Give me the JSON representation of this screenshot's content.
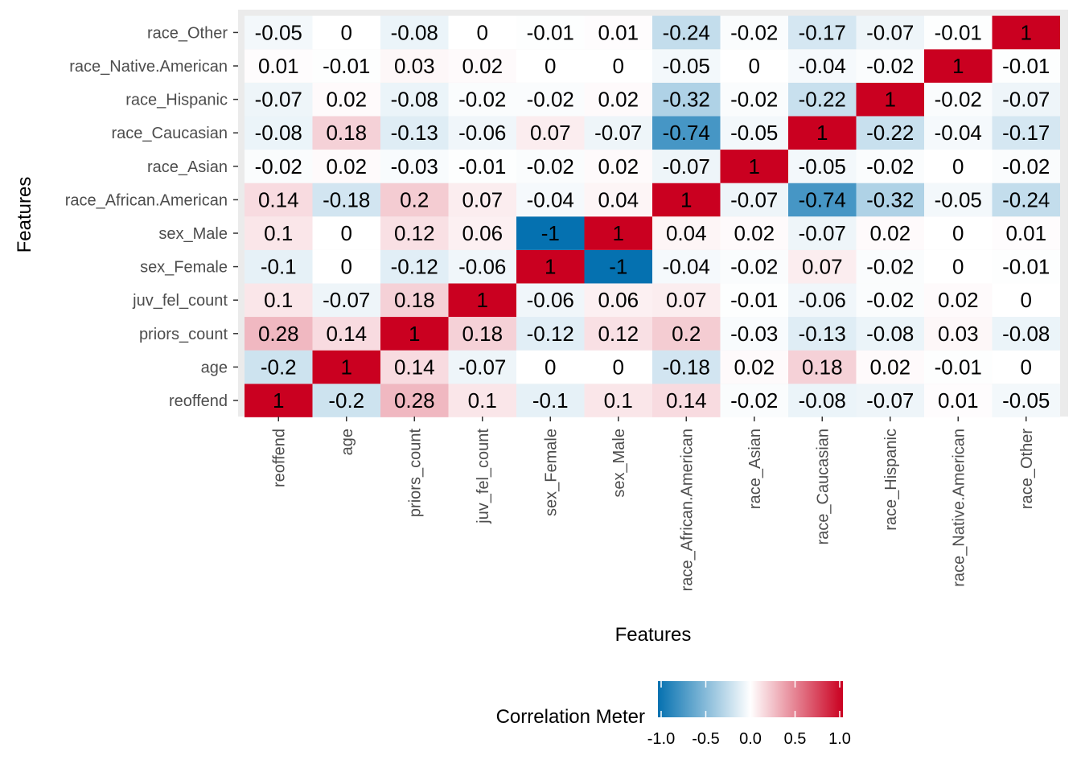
{
  "chart_data": {
    "type": "heatmap",
    "title": "",
    "xlabel": "Features",
    "ylabel": "Features",
    "features": [
      "reoffend",
      "age",
      "priors_count",
      "juv_fel_count",
      "sex_Female",
      "sex_Male",
      "race_African.American",
      "race_Asian",
      "race_Caucasian",
      "race_Hispanic",
      "race_Native.American",
      "race_Other"
    ],
    "x_categories": [
      "reoffend",
      "age",
      "priors_count",
      "juv_fel_count",
      "sex_Female",
      "sex_Male",
      "race_African.American",
      "race_Asian",
      "race_Caucasian",
      "race_Hispanic",
      "race_Native.American",
      "race_Other"
    ],
    "y_categories_bottom_to_top": [
      "reoffend",
      "age",
      "priors_count",
      "juv_fel_count",
      "sex_Female",
      "sex_Male",
      "race_African.American",
      "race_Asian",
      "race_Caucasian",
      "race_Hispanic",
      "race_Native.American",
      "race_Other"
    ],
    "values": [
      [
        1,
        -0.2,
        0.28,
        0.1,
        -0.1,
        0.1,
        0.14,
        -0.02,
        -0.08,
        -0.07,
        0.01,
        -0.05
      ],
      [
        -0.2,
        1,
        0.14,
        -0.07,
        0,
        0,
        -0.18,
        0.02,
        0.18,
        0.02,
        -0.01,
        0
      ],
      [
        0.28,
        0.14,
        1,
        0.18,
        -0.12,
        0.12,
        0.2,
        -0.03,
        -0.13,
        -0.08,
        0.03,
        -0.08
      ],
      [
        0.1,
        -0.07,
        0.18,
        1,
        -0.06,
        0.06,
        0.07,
        -0.01,
        -0.06,
        -0.02,
        0.02,
        0
      ],
      [
        -0.1,
        0,
        -0.12,
        -0.06,
        1,
        -1,
        -0.04,
        -0.02,
        0.07,
        -0.02,
        0,
        -0.01
      ],
      [
        0.1,
        0,
        0.12,
        0.06,
        -1,
        1,
        0.04,
        0.02,
        -0.07,
        0.02,
        0,
        0.01
      ],
      [
        0.14,
        -0.18,
        0.2,
        0.07,
        -0.04,
        0.04,
        1,
        -0.07,
        -0.74,
        -0.32,
        -0.05,
        -0.24
      ],
      [
        -0.02,
        0.02,
        -0.03,
        -0.01,
        -0.02,
        0.02,
        -0.07,
        1,
        -0.05,
        -0.02,
        0,
        -0.02
      ],
      [
        -0.08,
        0.18,
        -0.13,
        -0.06,
        0.07,
        -0.07,
        -0.74,
        -0.05,
        1,
        -0.22,
        -0.04,
        -0.17
      ],
      [
        -0.07,
        0.02,
        -0.08,
        -0.02,
        -0.02,
        0.02,
        -0.32,
        -0.02,
        -0.22,
        1,
        -0.02,
        -0.07
      ],
      [
        0.01,
        -0.01,
        0.03,
        0.02,
        0,
        0,
        -0.05,
        0,
        -0.04,
        -0.02,
        1,
        -0.01
      ],
      [
        -0.05,
        0,
        -0.08,
        0,
        -0.01,
        0.01,
        -0.24,
        -0.02,
        -0.17,
        -0.07,
        -0.01,
        1
      ]
    ],
    "values_note": "values[i][j] = correlation between y feature i (bottom to top) and x feature j",
    "color_scale": {
      "low": "#0571b0",
      "mid": "#ffffff",
      "high": "#ca0020",
      "limits": [
        -1,
        1
      ]
    },
    "legend": {
      "title": "Correlation Meter",
      "placement": "bottom",
      "ticks": [
        "-1.0",
        "-0.5",
        "0.0",
        "0.5",
        "1.0"
      ]
    },
    "panel_background": "#ebebeb",
    "grid": false
  }
}
